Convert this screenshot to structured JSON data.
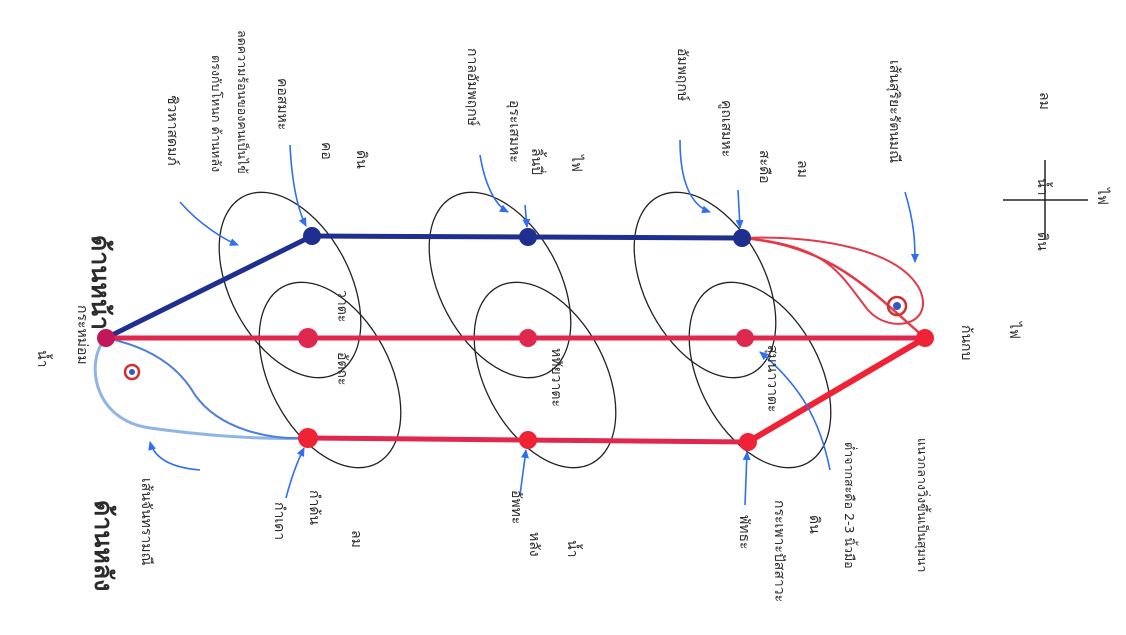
{
  "labels": {
    "top_left_element": "น้ำ",
    "top_junction": "กระหม่อม",
    "back_side": "ด้านหลัง",
    "front_side": "ด้านหน้า",
    "moon_line": "เส้นจันทรามณี",
    "sun_line": "เส้นสุริยะรัตนมณี",
    "chiwha": "ชิวหาสดมภ์",
    "chiwha_desc": "ตรงกับโหนก ด้านหลัง",
    "chiwha_desc2": "ลดความร้อนของคนเป็นไข้",
    "kodmaha": "คอสมหะ",
    "ko": "คอ",
    "din_1": "ดิน",
    "watta": "วาตะ",
    "ukata": "อัตถะ",
    "kala": "กาลอัมพฤกษ์",
    "urasema": "อุระเสมหะ",
    "naiji": "ลิ้นปี่",
    "fai_1": "ไฟ",
    "hathaya": "หทัยวาตะ",
    "ambhruk": "อัมพฤกษ์",
    "kutasema": "คูถเสมหะ",
    "saduea": "สะดือ",
    "lom_1": "ลม",
    "suma": "สุมนาวาตะ",
    "kamda": "กำเดา",
    "kaden": "กำด้น",
    "lom_2": "ลม",
    "ampat": "อัพทะ",
    "lang": "หลัง",
    "nam_1": "น้ำ",
    "phattha": "พัทธะ",
    "kraphao": "กระเพาะปัสสาวะ",
    "din_2": "ดิน",
    "finger": "ต่ำจากสะดือ 2-3 นิ้วมือ",
    "sumna_bottom": "แนวกลางวิ่งขึ้นเป็นสุมนา",
    "kanthop": "ก้นกบ",
    "fai_2": "ไฟ",
    "cross_lom": "ลม",
    "cross_nam": "น้ำ",
    "cross_din": "ดิน",
    "cross_fai": "ไฟ"
  },
  "colors": {
    "blue": "#1f2f8f",
    "red": "#e0284f",
    "bright_red": "#ef2335",
    "arrow": "#2f6ff0",
    "ink": "#222222"
  }
}
